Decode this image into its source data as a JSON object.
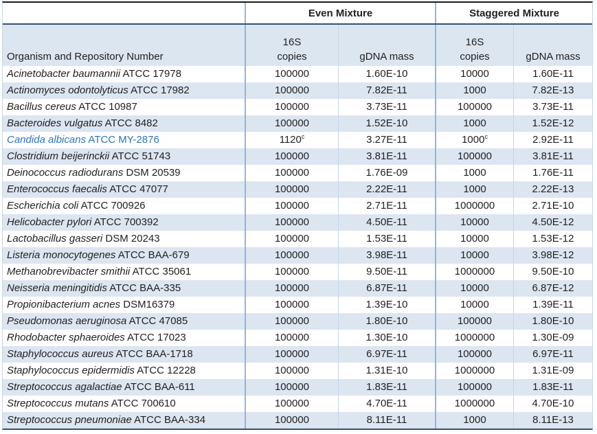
{
  "header": {
    "organism_label": "Organism and Repository Number",
    "groups": [
      {
        "label": "Even Mixture"
      },
      {
        "label": "Staggered Mixture"
      }
    ],
    "copies_label_line1": "16S",
    "copies_label_line2": "copies",
    "gdna_label": "gDNA mass"
  },
  "rows": [
    {
      "species": "Acinetobacter baumannii",
      "repo": "ATCC 17978",
      "even_copies": "100000",
      "even_sup": "",
      "even_gdna": "1.60E-10",
      "stag_copies": "10000",
      "stag_sup": "",
      "stag_gdna": "1.60E-11",
      "highlighted": false
    },
    {
      "species": "Actinomyces odontolyticus",
      "repo": "ATCC 17982",
      "even_copies": "100000",
      "even_sup": "",
      "even_gdna": "7.82E-11",
      "stag_copies": "1000",
      "stag_sup": "",
      "stag_gdna": "7.82E-13",
      "highlighted": false
    },
    {
      "species": "Bacillus cereus",
      "repo": "ATCC 10987",
      "even_copies": "100000",
      "even_sup": "",
      "even_gdna": "3.73E-11",
      "stag_copies": "100000",
      "stag_sup": "",
      "stag_gdna": "3.73E-11",
      "highlighted": false
    },
    {
      "species": "Bacteroides vulgatus",
      "repo": "ATCC 8482",
      "even_copies": "100000",
      "even_sup": "",
      "even_gdna": "1.52E-10",
      "stag_copies": "1000",
      "stag_sup": "",
      "stag_gdna": "1.52E-12",
      "highlighted": false
    },
    {
      "species": "Candida albicans",
      "repo": "ATCC MY-2876",
      "even_copies": "1120",
      "even_sup": "c",
      "even_gdna": "3.27E-11",
      "stag_copies": "1000",
      "stag_sup": "c",
      "stag_gdna": "2.92E-11",
      "highlighted": true
    },
    {
      "species": "Clostridium beijerinckii",
      "repo": "ATCC 51743",
      "even_copies": "100000",
      "even_sup": "",
      "even_gdna": "3.81E-11",
      "stag_copies": "100000",
      "stag_sup": "",
      "stag_gdna": "3.81E-11",
      "highlighted": false
    },
    {
      "species": "Deinococcus radiodurans",
      "repo": "DSM 20539",
      "even_copies": "100000",
      "even_sup": "",
      "even_gdna": "1.76E-09",
      "stag_copies": "1000",
      "stag_sup": "",
      "stag_gdna": "1.76E-11",
      "highlighted": false
    },
    {
      "species": "Enterococcus faecalis",
      "repo": "ATCC 47077",
      "even_copies": "100000",
      "even_sup": "",
      "even_gdna": "2.22E-11",
      "stag_copies": "1000",
      "stag_sup": "",
      "stag_gdna": "2.22E-13",
      "highlighted": false
    },
    {
      "species": "Escherichia coli",
      "repo": "ATCC 700926",
      "even_copies": "100000",
      "even_sup": "",
      "even_gdna": "2.71E-11",
      "stag_copies": "1000000",
      "stag_sup": "",
      "stag_gdna": "2.71E-10",
      "highlighted": false
    },
    {
      "species": "Helicobacter pylori",
      "repo": "ATCC 700392",
      "even_copies": "100000",
      "even_sup": "",
      "even_gdna": "4.50E-11",
      "stag_copies": "10000",
      "stag_sup": "",
      "stag_gdna": "4.50E-12",
      "highlighted": false
    },
    {
      "species": "Lactobacillus gasseri",
      "repo": "DSM 20243",
      "even_copies": "100000",
      "even_sup": "",
      "even_gdna": "1.53E-11",
      "stag_copies": "10000",
      "stag_sup": "",
      "stag_gdna": "1.53E-12",
      "highlighted": false
    },
    {
      "species": "Listeria monocytogenes",
      "repo": "ATCC BAA-679",
      "even_copies": "100000",
      "even_sup": "",
      "even_gdna": "3.98E-11",
      "stag_copies": "10000",
      "stag_sup": "",
      "stag_gdna": "3.98E-12",
      "highlighted": false
    },
    {
      "species": "Methanobrevibacter smithii",
      "repo": "ATCC 35061",
      "even_copies": "100000",
      "even_sup": "",
      "even_gdna": "9.50E-11",
      "stag_copies": "1000000",
      "stag_sup": "",
      "stag_gdna": "9.50E-10",
      "highlighted": false
    },
    {
      "species": "Neisseria meningitidis",
      "repo": "ATCC BAA-335",
      "even_copies": "100000",
      "even_sup": "",
      "even_gdna": "6.87E-11",
      "stag_copies": "10000",
      "stag_sup": "",
      "stag_gdna": "6.87E-12",
      "highlighted": false
    },
    {
      "species": "Propionibacterium acnes",
      "repo": "DSM16379",
      "even_copies": "100000",
      "even_sup": "",
      "even_gdna": "1.39E-10",
      "stag_copies": "10000",
      "stag_sup": "",
      "stag_gdna": "1.39E-11",
      "highlighted": false
    },
    {
      "species": "Pseudomonas aeruginosa",
      "repo": "ATCC 47085",
      "even_copies": "100000",
      "even_sup": "",
      "even_gdna": "1.80E-10",
      "stag_copies": "100000",
      "stag_sup": "",
      "stag_gdna": "1.80E-10",
      "highlighted": false
    },
    {
      "species": "Rhodobacter sphaeroides",
      "repo": "ATCC 17023",
      "even_copies": "100000",
      "even_sup": "",
      "even_gdna": "1.30E-10",
      "stag_copies": "1000000",
      "stag_sup": "",
      "stag_gdna": "1.30E-09",
      "highlighted": false
    },
    {
      "species": "Staphylococcus aureus",
      "repo": "ATCC BAA-1718",
      "even_copies": "100000",
      "even_sup": "",
      "even_gdna": "6.97E-11",
      "stag_copies": "100000",
      "stag_sup": "",
      "stag_gdna": "6.97E-11",
      "highlighted": false
    },
    {
      "species": "Staphylococcus epidermidis",
      "repo": "ATCC 12228",
      "even_copies": "100000",
      "even_sup": "",
      "even_gdna": "1.31E-10",
      "stag_copies": "1000000",
      "stag_sup": "",
      "stag_gdna": "1.31E-09",
      "highlighted": false
    },
    {
      "species": "Streptococcus agalactiae",
      "repo": "ATCC BAA-611",
      "even_copies": "100000",
      "even_sup": "",
      "even_gdna": "1.83E-11",
      "stag_copies": "100000",
      "stag_sup": "",
      "stag_gdna": "1.83E-11",
      "highlighted": false
    },
    {
      "species": "Streptococcus mutans",
      "repo": "ATCC 700610",
      "even_copies": "100000",
      "even_sup": "",
      "even_gdna": "4.70E-11",
      "stag_copies": "1000000",
      "stag_sup": "",
      "stag_gdna": "4.70E-10",
      "highlighted": false
    },
    {
      "species": "Streptococcus pneumoniae",
      "repo": "ATCC BAA-334",
      "even_copies": "100000",
      "even_sup": "",
      "even_gdna": "8.11E-11",
      "stag_copies": "1000",
      "stag_sup": "",
      "stag_gdna": "8.11E-13",
      "highlighted": false
    }
  ],
  "colors": {
    "band": "#dce6f1",
    "line-sep": "#95b3d7",
    "line-faint": "#c6d5e8",
    "line-top": "#1a1a1a",
    "line-heavy": "#35506e",
    "highlight": "#2e74b5"
  }
}
